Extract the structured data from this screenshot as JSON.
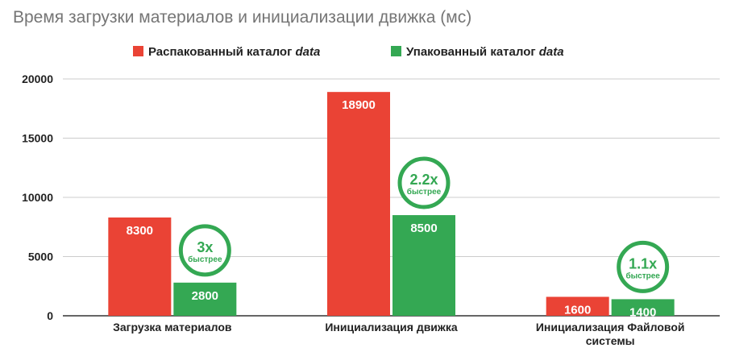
{
  "chart_data": {
    "type": "bar",
    "title": "Время загрузки материалов и инициализации движка (мс)",
    "categories": [
      [
        "Загрузка материалов"
      ],
      [
        "Инициализация движка"
      ],
      [
        "Инициализация Файловой",
        "системы"
      ]
    ],
    "series": [
      {
        "name_prefix": "Распакованный каталог ",
        "name_emphasis": "data",
        "color": "#ea4335",
        "values": [
          8300,
          18900,
          1600
        ]
      },
      {
        "name_prefix": "Упакованный каталог ",
        "name_emphasis": "data",
        "color": "#34a853",
        "values": [
          2800,
          8500,
          1400
        ]
      }
    ],
    "ylim": [
      0,
      20000
    ],
    "yticks": [
      "0",
      "5000",
      "10000",
      "15000",
      "20000"
    ],
    "ytick_values": [
      0,
      5000,
      10000,
      15000,
      20000
    ],
    "grid": true,
    "legend_position": "top-center",
    "annotations": [
      {
        "text": "3x",
        "subtext": "быстрее",
        "category_index": 0
      },
      {
        "text": "2.2x",
        "subtext": "быстрее",
        "category_index": 1
      },
      {
        "text": "1.1x",
        "subtext": "быстрее",
        "category_index": 2
      }
    ],
    "annotation_color": "#34a853"
  }
}
